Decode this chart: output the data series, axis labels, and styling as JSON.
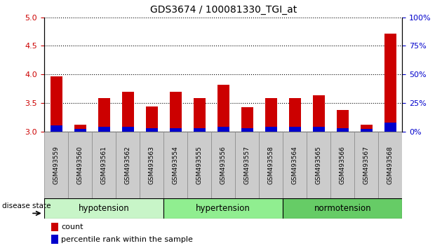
{
  "title": "GDS3674 / 100081330_TGI_at",
  "samples": [
    "GSM493559",
    "GSM493560",
    "GSM493561",
    "GSM493562",
    "GSM493563",
    "GSM493554",
    "GSM493555",
    "GSM493556",
    "GSM493557",
    "GSM493558",
    "GSM493564",
    "GSM493565",
    "GSM493566",
    "GSM493567",
    "GSM493568"
  ],
  "count_values": [
    3.97,
    3.12,
    3.58,
    3.7,
    3.44,
    3.7,
    3.58,
    3.82,
    3.42,
    3.58,
    3.58,
    3.63,
    3.38,
    3.12,
    4.72
  ],
  "percentile_values": [
    5,
    2,
    4,
    4,
    3,
    3,
    3,
    4,
    3,
    4,
    4,
    4,
    3,
    2,
    8
  ],
  "ylim_left": [
    3.0,
    5.0
  ],
  "ylim_right": [
    0,
    100
  ],
  "yticks_left": [
    3.0,
    3.5,
    4.0,
    4.5,
    5.0
  ],
  "yticks_right": [
    0,
    25,
    50,
    75,
    100
  ],
  "groups": [
    {
      "label": "hypotension",
      "start": 0,
      "end": 4
    },
    {
      "label": "hypertension",
      "start": 5,
      "end": 9
    },
    {
      "label": "normotension",
      "start": 10,
      "end": 14
    }
  ],
  "group_colors": [
    "#c8f5c8",
    "#90ee90",
    "#66cc66"
  ],
  "bar_width": 0.5,
  "count_color": "#cc0000",
  "percentile_color": "#0000cc",
  "tick_label_color_left": "#cc0000",
  "tick_label_color_right": "#0000cc",
  "col_bg_color": "#cccccc",
  "col_bg_edge": "#888888"
}
